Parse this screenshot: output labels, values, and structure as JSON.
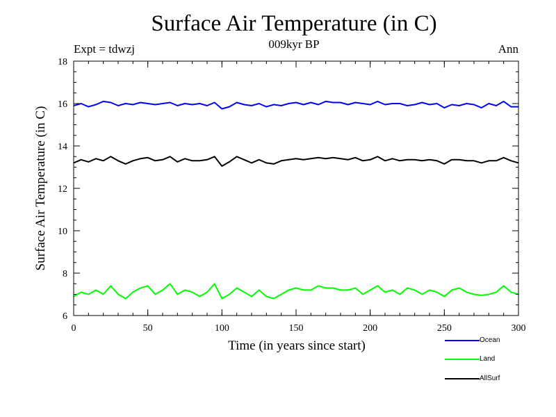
{
  "header": {
    "title": "Surface Air Temperature (in C)",
    "subtitle": "009kyr BP",
    "experiment": "Expt = tdwzj",
    "season": "Ann"
  },
  "chart_data": {
    "type": "line",
    "title": "Surface Air Temperature (in C)",
    "subtitle": "009kyr BP",
    "xlabel": "Time (in years since start)",
    "ylabel": "Surface Air Temperature (in C)",
    "xlim": [
      0,
      300
    ],
    "ylim": [
      6,
      18
    ],
    "xticks": [
      0,
      50,
      100,
      150,
      200,
      250,
      300
    ],
    "yticks": [
      6,
      8,
      10,
      12,
      14,
      16,
      18
    ],
    "grid": false,
    "legend_position": "bottom-right",
    "x": [
      0,
      5,
      10,
      15,
      20,
      25,
      30,
      35,
      40,
      45,
      50,
      55,
      60,
      65,
      70,
      75,
      80,
      85,
      90,
      95,
      100,
      105,
      110,
      115,
      120,
      125,
      130,
      135,
      140,
      145,
      150,
      155,
      160,
      165,
      170,
      175,
      180,
      185,
      190,
      195,
      200,
      205,
      210,
      215,
      220,
      225,
      230,
      235,
      240,
      245,
      250,
      255,
      260,
      265,
      270,
      275,
      280,
      285,
      290,
      295,
      300
    ],
    "series": [
      {
        "name": "Ocean",
        "color": "#0000ff",
        "values": [
          15.9,
          16.0,
          15.85,
          15.95,
          16.1,
          16.05,
          15.9,
          16.0,
          15.95,
          16.05,
          16.0,
          15.95,
          16.0,
          16.05,
          15.9,
          16.0,
          15.95,
          16.0,
          15.9,
          16.05,
          15.75,
          15.85,
          16.05,
          15.95,
          15.9,
          16.0,
          15.85,
          15.95,
          15.9,
          16.0,
          16.05,
          15.95,
          16.05,
          15.95,
          16.1,
          16.05,
          16.05,
          15.95,
          16.05,
          16.0,
          15.95,
          16.1,
          15.95,
          16.0,
          16.0,
          15.9,
          15.95,
          16.05,
          15.95,
          16.0,
          15.8,
          15.95,
          15.9,
          16.0,
          15.95,
          15.8,
          16.0,
          15.9,
          16.1,
          15.85,
          15.85
        ]
      },
      {
        "name": "Land",
        "color": "#00ff00",
        "values": [
          6.9,
          7.1,
          7.0,
          7.2,
          7.0,
          7.4,
          7.0,
          6.8,
          7.1,
          7.3,
          7.4,
          7.0,
          7.2,
          7.5,
          7.0,
          7.2,
          7.1,
          6.9,
          7.1,
          7.5,
          6.8,
          7.0,
          7.3,
          7.1,
          6.9,
          7.2,
          6.9,
          6.8,
          7.0,
          7.2,
          7.3,
          7.2,
          7.2,
          7.4,
          7.3,
          7.3,
          7.2,
          7.2,
          7.3,
          7.0,
          7.2,
          7.4,
          7.1,
          7.2,
          7.0,
          7.3,
          7.2,
          7.0,
          7.2,
          7.1,
          6.9,
          7.2,
          7.3,
          7.1,
          7.0,
          6.95,
          7.0,
          7.1,
          7.4,
          7.1,
          7.0
        ]
      },
      {
        "name": "AllSurf",
        "color": "#000000",
        "values": [
          13.2,
          13.35,
          13.25,
          13.4,
          13.3,
          13.5,
          13.3,
          13.15,
          13.3,
          13.4,
          13.45,
          13.3,
          13.35,
          13.5,
          13.25,
          13.4,
          13.3,
          13.3,
          13.35,
          13.5,
          13.05,
          13.25,
          13.5,
          13.35,
          13.2,
          13.35,
          13.2,
          13.15,
          13.3,
          13.35,
          13.4,
          13.35,
          13.4,
          13.45,
          13.4,
          13.45,
          13.4,
          13.35,
          13.45,
          13.3,
          13.35,
          13.5,
          13.3,
          13.4,
          13.3,
          13.35,
          13.35,
          13.3,
          13.35,
          13.3,
          13.15,
          13.35,
          13.35,
          13.3,
          13.3,
          13.2,
          13.3,
          13.3,
          13.45,
          13.3,
          13.2
        ]
      }
    ]
  }
}
